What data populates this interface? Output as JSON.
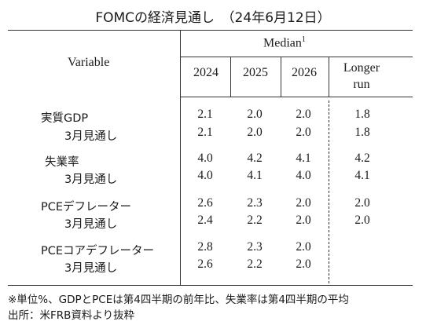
{
  "title": "FOMCの経済見通し　（24年6月12日）",
  "header": {
    "variable": "Variable",
    "median": "Median",
    "median_sup": "1",
    "columns": [
      "2024",
      "2025",
      "2026",
      "Longer",
      "run"
    ]
  },
  "rows": [
    {
      "label": "実質GDP",
      "values": [
        "2.1",
        "2.0",
        "2.0",
        "1.8"
      ]
    },
    {
      "label": "3月見通し",
      "values": [
        "2.1",
        "2.0",
        "2.0",
        "1.8"
      ]
    },
    {
      "label": "失業率",
      "values": [
        "4.0",
        "4.2",
        "4.1",
        "4.2"
      ]
    },
    {
      "label": "3月見通し",
      "values": [
        "4.0",
        "4.1",
        "4.0",
        "4.1"
      ]
    },
    {
      "label": "PCEデフレーター",
      "values": [
        "2.6",
        "2.3",
        "2.0",
        "2.0"
      ]
    },
    {
      "label": "3月見通し",
      "values": [
        "2.4",
        "2.2",
        "2.0",
        "2.0"
      ]
    },
    {
      "label": "PCEコアデフレーター",
      "values": [
        "2.8",
        "2.3",
        "2.0",
        ""
      ]
    },
    {
      "label": "3月見通し",
      "values": [
        "2.6",
        "2.2",
        "2.0",
        ""
      ]
    }
  ],
  "footnotes": [
    "※単位%、GDPとPCEは第4四半期の前年比、失業率は第4四半期の平均",
    "出所：米FRB資料より抜粋"
  ]
}
